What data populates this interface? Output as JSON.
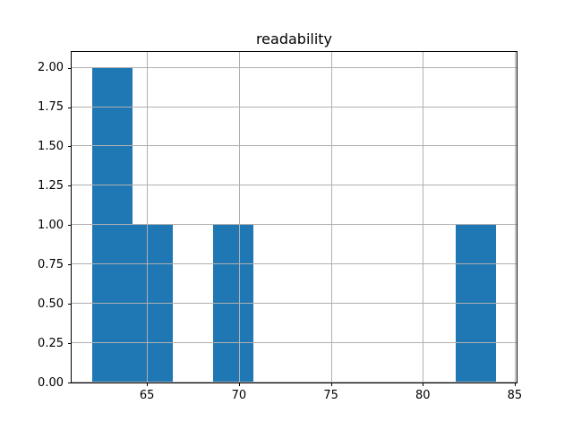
{
  "chart_data": {
    "type": "bar",
    "subtype": "histogram",
    "title": "readability",
    "xlabel": "",
    "ylabel": "",
    "bin_edges": [
      62.0,
      64.2,
      66.4,
      68.6,
      70.8,
      73.0,
      75.2,
      77.4,
      79.6,
      81.8,
      84.0
    ],
    "counts": [
      2,
      1,
      0,
      1,
      0,
      0,
      0,
      0,
      0,
      1
    ],
    "xlim": [
      60.9,
      85.1
    ],
    "ylim": [
      0,
      2.1
    ],
    "xticks": [
      65,
      70,
      75,
      80,
      85
    ],
    "yticks": [
      0,
      0.25,
      0.5,
      0.75,
      1.0,
      1.25,
      1.5,
      1.75,
      2.0
    ],
    "xtick_labels": [
      "65",
      "70",
      "75",
      "80",
      "85"
    ],
    "ytick_labels": [
      "0.00",
      "0.25",
      "0.50",
      "0.75",
      "1.00",
      "1.25",
      "1.50",
      "1.75",
      "2.00"
    ],
    "grid": true,
    "grid_above_bars": true,
    "legend": false,
    "bar_color": "#1f77b4",
    "grid_color": "#b0b0b0",
    "spine_color": "#000000",
    "text_color": "#000000",
    "background_color": "#ffffff"
  }
}
